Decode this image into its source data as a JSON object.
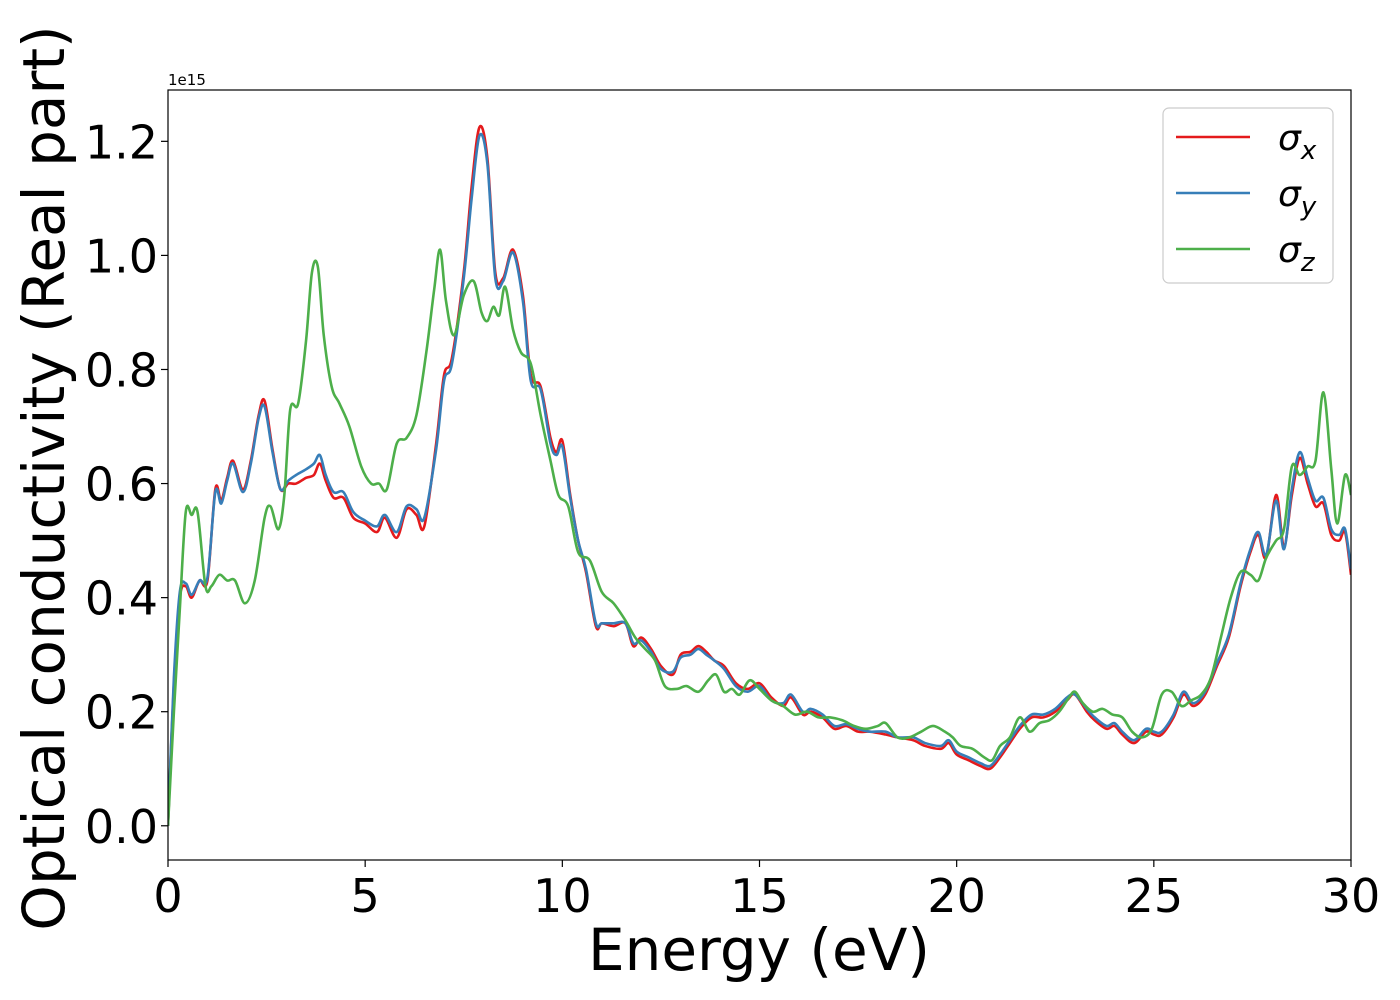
{
  "chart_data": {
    "type": "line",
    "xlabel": "Energy (eV)",
    "ylabel": "Optical conductivity (Real part)",
    "y_offset_text": "1e15",
    "xlim": [
      0,
      30
    ],
    "ylim": [
      -0.06,
      1.29
    ],
    "xticks": [
      0,
      5,
      10,
      15,
      20,
      25,
      30
    ],
    "xtick_labels": [
      "0",
      "5",
      "10",
      "15",
      "20",
      "25",
      "30"
    ],
    "yticks": [
      0.0,
      0.2,
      0.4,
      0.6,
      0.8,
      1.0,
      1.2
    ],
    "ytick_labels": [
      "0.0",
      "0.2",
      "0.4",
      "0.6",
      "0.8",
      "1.0",
      "1.2"
    ],
    "grid": false,
    "legend_position": "top-right",
    "series": [
      {
        "name": "σx",
        "label_base": "σ",
        "label_sub": "x",
        "color": "#e41a1c",
        "x": [
          0,
          0.15,
          0.3,
          0.45,
          0.6,
          0.8,
          1.0,
          1.2,
          1.35,
          1.5,
          1.65,
          1.9,
          2.1,
          2.3,
          2.45,
          2.65,
          2.85,
          3.05,
          3.25,
          3.5,
          3.7,
          3.85,
          4.0,
          4.2,
          4.45,
          4.7,
          5.0,
          5.3,
          5.5,
          5.8,
          6.05,
          6.3,
          6.5,
          6.8,
          7.0,
          7.2,
          7.5,
          7.7,
          7.9,
          8.1,
          8.3,
          8.5,
          8.75,
          9.0,
          9.2,
          9.45,
          9.7,
          9.85,
          10.0,
          10.2,
          10.4,
          10.6,
          10.85,
          11.0,
          11.3,
          11.6,
          11.8,
          12.0,
          12.25,
          12.5,
          12.8,
          13.0,
          13.25,
          13.45,
          13.65,
          13.85,
          14.1,
          14.4,
          14.7,
          15.0,
          15.3,
          15.6,
          15.8,
          16.1,
          16.3,
          16.6,
          16.9,
          17.2,
          17.5,
          17.8,
          18.2,
          18.5,
          18.9,
          19.2,
          19.6,
          19.8,
          20.0,
          20.3,
          20.6,
          20.85,
          21.1,
          21.3,
          21.6,
          21.9,
          22.2,
          22.5,
          22.8,
          23.0,
          23.3,
          23.5,
          23.8,
          24.0,
          24.2,
          24.5,
          24.8,
          25.0,
          25.2,
          25.5,
          25.75,
          26.0,
          26.3,
          26.6,
          26.9,
          27.2,
          27.45,
          27.65,
          27.85,
          28.1,
          28.3,
          28.5,
          28.7,
          28.9,
          29.1,
          29.3,
          29.5,
          29.7,
          29.85,
          30.0
        ],
        "y": [
          0.0,
          0.25,
          0.4,
          0.42,
          0.4,
          0.43,
          0.43,
          0.59,
          0.57,
          0.61,
          0.64,
          0.59,
          0.64,
          0.72,
          0.745,
          0.66,
          0.59,
          0.6,
          0.6,
          0.61,
          0.615,
          0.635,
          0.605,
          0.575,
          0.575,
          0.54,
          0.53,
          0.515,
          0.54,
          0.505,
          0.555,
          0.545,
          0.525,
          0.67,
          0.79,
          0.82,
          0.97,
          1.12,
          1.225,
          1.17,
          0.97,
          0.96,
          1.01,
          0.93,
          0.79,
          0.77,
          0.68,
          0.655,
          0.675,
          0.58,
          0.5,
          0.445,
          0.35,
          0.355,
          0.35,
          0.355,
          0.315,
          0.33,
          0.31,
          0.28,
          0.265,
          0.3,
          0.305,
          0.315,
          0.305,
          0.29,
          0.28,
          0.25,
          0.24,
          0.25,
          0.225,
          0.21,
          0.225,
          0.195,
          0.2,
          0.19,
          0.17,
          0.175,
          0.165,
          0.165,
          0.16,
          0.155,
          0.15,
          0.14,
          0.135,
          0.145,
          0.125,
          0.115,
          0.105,
          0.1,
          0.12,
          0.14,
          0.17,
          0.19,
          0.19,
          0.2,
          0.22,
          0.23,
          0.2,
          0.185,
          0.17,
          0.175,
          0.16,
          0.145,
          0.165,
          0.16,
          0.16,
          0.19,
          0.23,
          0.21,
          0.23,
          0.28,
          0.33,
          0.42,
          0.48,
          0.51,
          0.47,
          0.58,
          0.49,
          0.58,
          0.645,
          0.6,
          0.56,
          0.565,
          0.51,
          0.5,
          0.515,
          0.44
        ]
      },
      {
        "name": "σy",
        "label_base": "σ",
        "label_sub": "y",
        "color": "#377eb8",
        "x": [
          0,
          0.15,
          0.3,
          0.45,
          0.6,
          0.8,
          1.0,
          1.2,
          1.35,
          1.5,
          1.65,
          1.9,
          2.1,
          2.3,
          2.45,
          2.65,
          2.85,
          3.05,
          3.25,
          3.5,
          3.7,
          3.85,
          4.0,
          4.2,
          4.45,
          4.7,
          5.0,
          5.3,
          5.5,
          5.8,
          6.05,
          6.3,
          6.5,
          6.8,
          7.0,
          7.2,
          7.5,
          7.7,
          7.9,
          8.1,
          8.3,
          8.5,
          8.75,
          9.0,
          9.2,
          9.45,
          9.7,
          9.85,
          10.0,
          10.2,
          10.4,
          10.6,
          10.85,
          11.0,
          11.3,
          11.6,
          11.8,
          12.0,
          12.25,
          12.5,
          12.8,
          13.0,
          13.25,
          13.45,
          13.65,
          13.85,
          14.1,
          14.4,
          14.7,
          15.0,
          15.3,
          15.6,
          15.8,
          16.1,
          16.3,
          16.6,
          16.9,
          17.2,
          17.5,
          17.8,
          18.2,
          18.5,
          18.9,
          19.2,
          19.6,
          19.8,
          20.0,
          20.3,
          20.6,
          20.85,
          21.1,
          21.3,
          21.6,
          21.9,
          22.2,
          22.5,
          22.8,
          23.0,
          23.3,
          23.5,
          23.8,
          24.0,
          24.2,
          24.5,
          24.8,
          25.0,
          25.2,
          25.5,
          25.75,
          26.0,
          26.3,
          26.6,
          26.9,
          27.2,
          27.45,
          27.65,
          27.85,
          28.1,
          28.3,
          28.5,
          28.7,
          28.9,
          29.1,
          29.3,
          29.5,
          29.7,
          29.85,
          30.0
        ],
        "y": [
          0.0,
          0.26,
          0.41,
          0.425,
          0.405,
          0.43,
          0.435,
          0.585,
          0.565,
          0.605,
          0.635,
          0.585,
          0.635,
          0.715,
          0.735,
          0.655,
          0.59,
          0.605,
          0.615,
          0.625,
          0.635,
          0.65,
          0.615,
          0.585,
          0.585,
          0.55,
          0.535,
          0.525,
          0.545,
          0.515,
          0.56,
          0.555,
          0.54,
          0.66,
          0.78,
          0.81,
          0.96,
          1.1,
          1.21,
          1.16,
          0.96,
          0.955,
          1.005,
          0.92,
          0.78,
          0.765,
          0.67,
          0.65,
          0.665,
          0.575,
          0.5,
          0.45,
          0.355,
          0.355,
          0.355,
          0.355,
          0.32,
          0.325,
          0.305,
          0.275,
          0.27,
          0.295,
          0.3,
          0.31,
          0.3,
          0.29,
          0.275,
          0.245,
          0.235,
          0.245,
          0.22,
          0.215,
          0.23,
          0.2,
          0.205,
          0.195,
          0.175,
          0.178,
          0.17,
          0.165,
          0.165,
          0.155,
          0.155,
          0.145,
          0.14,
          0.15,
          0.13,
          0.12,
          0.11,
          0.105,
          0.125,
          0.145,
          0.175,
          0.195,
          0.195,
          0.205,
          0.225,
          0.23,
          0.205,
          0.19,
          0.175,
          0.18,
          0.165,
          0.15,
          0.17,
          0.165,
          0.165,
          0.195,
          0.235,
          0.215,
          0.235,
          0.285,
          0.335,
          0.425,
          0.485,
          0.515,
          0.475,
          0.57,
          0.485,
          0.59,
          0.655,
          0.61,
          0.57,
          0.575,
          0.52,
          0.51,
          0.52,
          0.45
        ]
      },
      {
        "name": "σz",
        "label_base": "σ",
        "label_sub": "z",
        "color": "#4daf4a",
        "x": [
          0,
          0.15,
          0.3,
          0.45,
          0.6,
          0.75,
          0.95,
          1.1,
          1.3,
          1.5,
          1.7,
          1.95,
          2.2,
          2.45,
          2.6,
          2.8,
          2.95,
          3.1,
          3.3,
          3.5,
          3.65,
          3.8,
          3.95,
          4.15,
          4.35,
          4.6,
          4.9,
          5.15,
          5.35,
          5.55,
          5.8,
          6.05,
          6.3,
          6.55,
          6.75,
          6.9,
          7.05,
          7.25,
          7.5,
          7.75,
          7.95,
          8.1,
          8.25,
          8.4,
          8.55,
          8.75,
          8.95,
          9.2,
          9.45,
          9.7,
          9.9,
          10.15,
          10.4,
          10.7,
          11.0,
          11.3,
          11.6,
          11.85,
          12.1,
          12.35,
          12.6,
          12.9,
          13.15,
          13.45,
          13.7,
          13.9,
          14.1,
          14.3,
          14.5,
          14.75,
          15.0,
          15.3,
          15.6,
          15.9,
          16.2,
          16.5,
          16.8,
          17.1,
          17.4,
          17.7,
          18.0,
          18.2,
          18.5,
          18.8,
          19.1,
          19.4,
          19.7,
          19.9,
          20.1,
          20.4,
          20.7,
          20.9,
          21.1,
          21.35,
          21.6,
          21.85,
          22.1,
          22.35,
          22.6,
          22.85,
          23.0,
          23.2,
          23.45,
          23.7,
          23.95,
          24.2,
          24.45,
          24.7,
          24.95,
          25.2,
          25.45,
          25.7,
          25.95,
          26.2,
          26.45,
          26.7,
          26.95,
          27.2,
          27.45,
          27.65,
          27.85,
          28.1,
          28.3,
          28.5,
          28.7,
          28.9,
          29.1,
          29.3,
          29.5,
          29.65,
          29.85,
          30.0
        ],
        "y": [
          0.0,
          0.2,
          0.38,
          0.55,
          0.545,
          0.55,
          0.42,
          0.42,
          0.44,
          0.43,
          0.43,
          0.39,
          0.43,
          0.54,
          0.56,
          0.52,
          0.58,
          0.73,
          0.74,
          0.85,
          0.97,
          0.98,
          0.86,
          0.77,
          0.74,
          0.7,
          0.63,
          0.6,
          0.6,
          0.59,
          0.67,
          0.68,
          0.72,
          0.83,
          0.94,
          1.01,
          0.92,
          0.86,
          0.93,
          0.955,
          0.9,
          0.885,
          0.91,
          0.895,
          0.945,
          0.87,
          0.83,
          0.81,
          0.72,
          0.64,
          0.58,
          0.56,
          0.48,
          0.465,
          0.41,
          0.39,
          0.36,
          0.33,
          0.31,
          0.29,
          0.245,
          0.24,
          0.245,
          0.235,
          0.255,
          0.265,
          0.235,
          0.24,
          0.23,
          0.255,
          0.24,
          0.22,
          0.21,
          0.195,
          0.2,
          0.19,
          0.19,
          0.185,
          0.175,
          0.17,
          0.175,
          0.18,
          0.155,
          0.155,
          0.165,
          0.175,
          0.165,
          0.155,
          0.14,
          0.135,
          0.12,
          0.115,
          0.14,
          0.155,
          0.19,
          0.165,
          0.18,
          0.185,
          0.2,
          0.225,
          0.235,
          0.215,
          0.2,
          0.205,
          0.195,
          0.19,
          0.165,
          0.155,
          0.17,
          0.23,
          0.235,
          0.21,
          0.22,
          0.23,
          0.26,
          0.33,
          0.4,
          0.445,
          0.44,
          0.43,
          0.47,
          0.5,
          0.52,
          0.63,
          0.615,
          0.63,
          0.64,
          0.76,
          0.625,
          0.53,
          0.615,
          0.58
        ]
      }
    ]
  }
}
